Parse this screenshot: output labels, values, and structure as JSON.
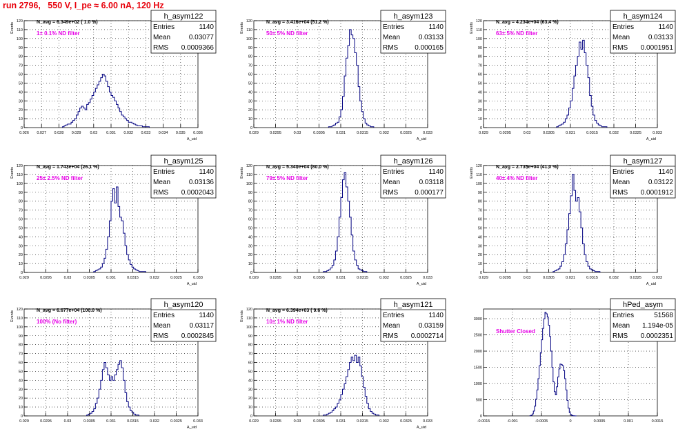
{
  "page_title": "run 2796,   550 V, I_pe ≈ 6.00 nA, 120 Hz",
  "colors": {
    "histogram_line": "#000080",
    "filter_label": "#e600e6",
    "title": "#e8000b",
    "axis": "#000000",
    "grid": "#000000"
  },
  "chart_data": [
    {
      "type": "histogram",
      "name": "h_asym122",
      "ylabel": "Events",
      "xlabel": "A_uid",
      "xlim": [
        0.026,
        0.036
      ],
      "ylim": [
        0,
        120
      ],
      "x_ticks": [
        "0.026",
        "0.027",
        "0.028",
        "0.029",
        "0.03",
        "0.031",
        "0.032",
        "0.033",
        "0.034",
        "0.035",
        "0.036"
      ],
      "y_ticks": [
        "0",
        "10",
        "20",
        "30",
        "40",
        "50",
        "60",
        "70",
        "80",
        "90",
        "100",
        "110",
        "120"
      ],
      "n_avg": "N_avg = 6.349e+02 ( 1.0 %)",
      "filter_label": "1± 0.1% ND filter",
      "stats": {
        "entries": "1140",
        "mean": "0.03077",
        "rms": "0.0009366"
      },
      "bin_width": 0.0001,
      "bin_start": 0.0282,
      "counts": [
        1,
        2,
        3,
        4,
        4,
        6,
        8,
        10,
        14,
        18,
        22,
        24,
        22,
        20,
        26,
        28,
        32,
        36,
        40,
        44,
        48,
        52,
        56,
        60,
        58,
        52,
        46,
        40,
        36,
        34,
        30,
        26,
        22,
        18,
        14,
        12,
        10,
        8,
        6,
        6,
        5,
        4,
        3,
        2,
        2,
        2,
        1,
        1,
        1,
        1
      ]
    },
    {
      "type": "histogram",
      "name": "h_asym123",
      "ylabel": "Events",
      "xlabel": "A_uid",
      "xlim": [
        0.029,
        0.033
      ],
      "ylim": [
        0,
        120
      ],
      "x_ticks": [
        "0.029",
        "0.0295",
        "0.03",
        "0.0305",
        "0.031",
        "0.0315",
        "0.032",
        "0.0325",
        "0.033"
      ],
      "y_ticks": [
        "0",
        "10",
        "20",
        "30",
        "40",
        "50",
        "60",
        "70",
        "80",
        "90",
        "100",
        "110",
        "120"
      ],
      "n_avg": "N_avg = 3.416e+04 (51.2 %)",
      "filter_label": "50± 5% ND filter",
      "stats": {
        "entries": "1140",
        "mean": "0.03133",
        "rms": "0.000165"
      },
      "bin_width": 4e-05,
      "bin_start": 0.03072,
      "counts": [
        1,
        1,
        2,
        3,
        5,
        6,
        12,
        20,
        35,
        58,
        78,
        92,
        110,
        104,
        100,
        84,
        70,
        46,
        30,
        18,
        10,
        5,
        3,
        2,
        1,
        1
      ]
    },
    {
      "type": "histogram",
      "name": "h_asym124",
      "ylabel": "Events",
      "xlabel": "A_uid",
      "xlim": [
        0.029,
        0.033
      ],
      "ylim": [
        0,
        120
      ],
      "x_ticks": [
        "0.029",
        "0.0295",
        "0.03",
        "0.0305",
        "0.031",
        "0.0315",
        "0.032",
        "0.0325",
        "0.033"
      ],
      "y_ticks": [
        "0",
        "10",
        "20",
        "30",
        "40",
        "50",
        "60",
        "70",
        "80",
        "90",
        "100",
        "110",
        "120"
      ],
      "n_avg": "N_avg = 4.234e+04 (63.4 %)",
      "filter_label": "63± 5% ND filter",
      "stats": {
        "entries": "1140",
        "mean": "0.03133",
        "rms": "0.0001951"
      },
      "bin_width": 4e-05,
      "bin_start": 0.03068,
      "counts": [
        1,
        2,
        3,
        4,
        6,
        10,
        14,
        22,
        30,
        44,
        58,
        70,
        80,
        96,
        88,
        98,
        84,
        70,
        56,
        36,
        24,
        14,
        8,
        5,
        3,
        2,
        1,
        1,
        1
      ]
    },
    {
      "type": "histogram",
      "name": "h_asym125",
      "ylabel": "Events",
      "xlabel": "A_uid",
      "xlim": [
        0.029,
        0.033
      ],
      "ylim": [
        0,
        120
      ],
      "x_ticks": [
        "0.029",
        "0.0295",
        "0.03",
        "0.0305",
        "0.031",
        "0.0315",
        "0.032",
        "0.0325",
        "0.033"
      ],
      "y_ticks": [
        "0",
        "10",
        "20",
        "30",
        "40",
        "50",
        "60",
        "70",
        "80",
        "90",
        "100",
        "110",
        "120"
      ],
      "n_avg": "N_avg = 1.743e+04 (26.1 %)",
      "filter_label": "25± 2.5% ND filter",
      "stats": {
        "entries": "1140",
        "mean": "0.03136",
        "rms": "0.0002043"
      },
      "bin_width": 4e-05,
      "bin_start": 0.0306,
      "counts": [
        1,
        2,
        3,
        4,
        6,
        10,
        16,
        26,
        40,
        58,
        80,
        94,
        78,
        96,
        74,
        62,
        58,
        44,
        30,
        20,
        14,
        9,
        6,
        4,
        3,
        2,
        1,
        1,
        1,
        1
      ]
    },
    {
      "type": "histogram",
      "name": "h_asym126",
      "ylabel": "Events",
      "xlabel": "A_uid",
      "xlim": [
        0.029,
        0.033
      ],
      "ylim": [
        0,
        120
      ],
      "x_ticks": [
        "0.029",
        "0.0295",
        "0.03",
        "0.0305",
        "0.031",
        "0.0315",
        "0.032",
        "0.0325",
        "0.033"
      ],
      "y_ticks": [
        "0",
        "10",
        "20",
        "30",
        "40",
        "50",
        "60",
        "70",
        "80",
        "90",
        "100",
        "110",
        "120"
      ],
      "n_avg": "N_avg = 5.340e+04 (80.0 %)",
      "filter_label": "79± 5% ND filter",
      "stats": {
        "entries": "1140",
        "mean": "0.03118",
        "rms": "0.000177"
      },
      "bin_width": 4e-05,
      "bin_start": 0.0306,
      "counts": [
        1,
        1,
        2,
        3,
        5,
        8,
        14,
        24,
        40,
        62,
        84,
        104,
        112,
        96,
        80,
        62,
        42,
        24,
        14,
        8,
        4,
        3,
        2,
        1,
        1
      ]
    },
    {
      "type": "histogram",
      "name": "h_asym127",
      "ylabel": "Events",
      "xlabel": "A_uid",
      "xlim": [
        0.029,
        0.033
      ],
      "ylim": [
        0,
        120
      ],
      "x_ticks": [
        "0.029",
        "0.0295",
        "0.03",
        "0.0305",
        "0.031",
        "0.0315",
        "0.032",
        "0.0325",
        "0.033"
      ],
      "y_ticks": [
        "0",
        "10",
        "20",
        "30",
        "40",
        "50",
        "60",
        "70",
        "80",
        "90",
        "100",
        "110",
        "120"
      ],
      "n_avg": "N_avg = 2.735e+04 (41.0 %)",
      "filter_label": "40± 4% ND filter",
      "stats": {
        "entries": "1140",
        "mean": "0.03122",
        "rms": "0.0001912"
      },
      "bin_width": 4e-05,
      "bin_start": 0.0306,
      "counts": [
        1,
        2,
        3,
        4,
        7,
        12,
        20,
        32,
        48,
        66,
        86,
        110,
        92,
        80,
        84,
        68,
        50,
        32,
        20,
        12,
        7,
        4,
        3,
        2,
        1,
        1,
        1
      ]
    },
    {
      "type": "histogram",
      "name": "h_asym120",
      "ylabel": "Events",
      "xlabel": "A_uid",
      "xlim": [
        0.029,
        0.033
      ],
      "ylim": [
        0,
        120
      ],
      "x_ticks": [
        "0.029",
        "0.0295",
        "0.03",
        "0.0305",
        "0.031",
        "0.0315",
        "0.032",
        "0.0325",
        "0.033"
      ],
      "y_ticks": [
        "0",
        "10",
        "20",
        "30",
        "40",
        "50",
        "60",
        "70",
        "80",
        "90",
        "100",
        "110",
        "120"
      ],
      "n_avg": "N_avg = 6.677e+04 (100.0 %)",
      "filter_label": "100% (No filter)",
      "stats": {
        "entries": "1140",
        "mean": "0.03117",
        "rms": "0.0002845"
      },
      "bin_width": 4e-05,
      "bin_start": 0.03044,
      "counts": [
        1,
        2,
        3,
        5,
        8,
        14,
        20,
        30,
        40,
        52,
        60,
        54,
        46,
        40,
        44,
        40,
        46,
        52,
        58,
        62,
        54,
        40,
        26,
        16,
        10,
        6,
        4,
        2,
        1,
        1
      ]
    },
    {
      "type": "histogram",
      "name": "h_asym121",
      "ylabel": "Events",
      "xlabel": "A_uid",
      "xlim": [
        0.029,
        0.033
      ],
      "ylim": [
        0,
        120
      ],
      "x_ticks": [
        "0.029",
        "0.0295",
        "0.03",
        "0.0305",
        "0.031",
        "0.0315",
        "0.032",
        "0.0325",
        "0.033"
      ],
      "y_ticks": [
        "0",
        "10",
        "20",
        "30",
        "40",
        "50",
        "60",
        "70",
        "80",
        "90",
        "100",
        "110",
        "120"
      ],
      "n_avg": "N_avg = 6.394e+03 ( 9.6 %)",
      "filter_label": "10± 1% ND filter",
      "stats": {
        "entries": "1140",
        "mean": "0.03159",
        "rms": "0.0002714"
      },
      "bin_width": 4e-05,
      "bin_start": 0.0306,
      "counts": [
        1,
        1,
        2,
        3,
        4,
        6,
        8,
        10,
        14,
        18,
        24,
        30,
        36,
        44,
        52,
        60,
        66,
        62,
        68,
        60,
        66,
        56,
        44,
        32,
        22,
        14,
        8,
        5,
        3,
        2,
        1,
        1
      ]
    },
    {
      "type": "histogram",
      "name": "hPed_asym",
      "ylabel": "",
      "xlabel": "",
      "xlim": [
        -0.0015,
        0.0015
      ],
      "ylim": [
        0,
        3300
      ],
      "x_ticks": [
        "-0.0015",
        "-0.001",
        "-0.0005",
        "0",
        "0.0005",
        "0.001",
        "0.0015"
      ],
      "y_ticks": [
        "0",
        "500",
        "1000",
        "1500",
        "2000",
        "2500",
        "3000"
      ],
      "n_avg": "",
      "filter_label": "Shutter Closed",
      "stats": {
        "entries": "51568",
        "mean": "1.194e-05",
        "rms": "0.0002351"
      },
      "bin_width": 2e-05,
      "bin_start": -0.0007,
      "counts": [
        5,
        20,
        60,
        150,
        300,
        520,
        800,
        1150,
        1550,
        1950,
        2350,
        2700,
        3000,
        3200,
        3150,
        3050,
        2800,
        2450,
        2000,
        1500,
        1050,
        750,
        650,
        900,
        1200,
        1450,
        1600,
        1580,
        1550,
        1400,
        1150,
        800,
        480,
        240,
        100,
        40,
        15,
        5,
        2,
        1
      ]
    }
  ]
}
